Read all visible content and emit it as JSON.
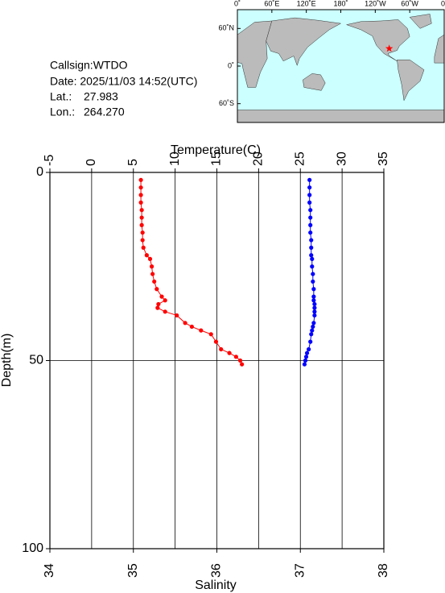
{
  "info": {
    "callsign": "Callsign:WTDO",
    "date": "Date:  2025/11/03 14:52(UTC)",
    "lat_label": "Lat.:",
    "lat": "27.983",
    "lon_label": "Lon.:",
    "lon": "264.270"
  },
  "map": {
    "lon_ticks": [
      {
        "value": 0,
        "label": "0˚"
      },
      {
        "value": 60,
        "label": "60˚E"
      },
      {
        "value": 120,
        "label": "120˚E"
      },
      {
        "value": 180,
        "label": "180˚"
      },
      {
        "value": 240,
        "label": "120˚W"
      },
      {
        "value": 300,
        "label": "60˚W"
      },
      {
        "value": 360,
        "label": "0˚"
      }
    ],
    "lat_ticks": [
      {
        "value": 60,
        "label": "60˚N"
      },
      {
        "value": 0,
        "label": "0˚"
      },
      {
        "value": -60,
        "label": "60˚S"
      }
    ]
  },
  "chart_data": {
    "type": "profile",
    "ylabel": "Depth(m)",
    "ylim": [
      0,
      100
    ],
    "yticks": [
      0,
      50,
      100
    ],
    "xlabel": "Salinity",
    "xlim": [
      34,
      38
    ],
    "xticks": [
      34,
      35,
      36,
      37,
      38
    ],
    "x2label": "Temperature(C)",
    "x2lim": [
      -5,
      35
    ],
    "x2ticks": [
      -5,
      0,
      5,
      10,
      15,
      20,
      25,
      30,
      35
    ],
    "grid": true,
    "depth": [
      2,
      4,
      6,
      8,
      10,
      12,
      14,
      16,
      18,
      20,
      22,
      23,
      25,
      27,
      29,
      31,
      33,
      34,
      35,
      36,
      37,
      38,
      40,
      41,
      42,
      43,
      45,
      47,
      48,
      49,
      50,
      51
    ],
    "series": [
      {
        "color": "#ff0000",
        "axis": "x2",
        "values": [
          5.9,
          5.9,
          5.9,
          5.9,
          6.0,
          6.0,
          6.0,
          6.1,
          6.1,
          6.2,
          6.6,
          7.0,
          7.2,
          7.3,
          7.5,
          7.8,
          8.4,
          8.8,
          8.0,
          7.9,
          8.8,
          10.2,
          11.2,
          12.0,
          13.1,
          14.3,
          14.9,
          15.5,
          16.5,
          17.3,
          17.8,
          18.0
        ]
      },
      {
        "color": "#0000ff",
        "axis": "x",
        "values": [
          37.11,
          37.11,
          37.11,
          37.11,
          37.12,
          37.12,
          37.12,
          37.12,
          37.13,
          37.13,
          37.13,
          37.14,
          37.14,
          37.15,
          37.15,
          37.16,
          37.16,
          37.16,
          37.17,
          37.17,
          37.17,
          37.17,
          37.16,
          37.15,
          37.14,
          37.13,
          37.12,
          37.1,
          37.08,
          37.07,
          37.06,
          37.05
        ]
      }
    ]
  }
}
